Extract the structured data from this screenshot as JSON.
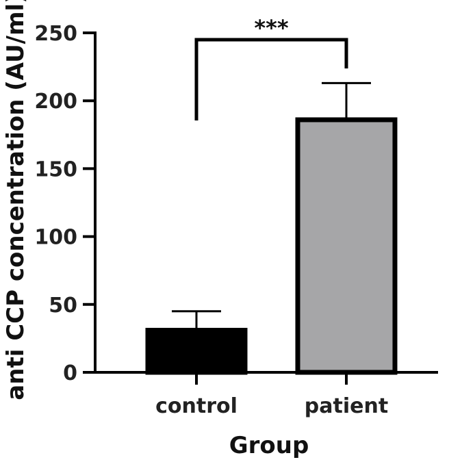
{
  "chart_data": {
    "type": "bar",
    "categories": [
      "control",
      "patient"
    ],
    "values": [
      31,
      186
    ],
    "error_upper": [
      45,
      213
    ],
    "bar_colors": [
      "#000000",
      "#a6a6a8"
    ],
    "xlabel": "Group",
    "ylabel": "anti CCP concentration (AU/ml)",
    "ylim": [
      0,
      250
    ],
    "yticks": [
      "0",
      "50",
      "100",
      "150",
      "200",
      "250"
    ],
    "significance": {
      "label": "***",
      "between": [
        "control",
        "patient"
      ]
    },
    "grid": false
  }
}
